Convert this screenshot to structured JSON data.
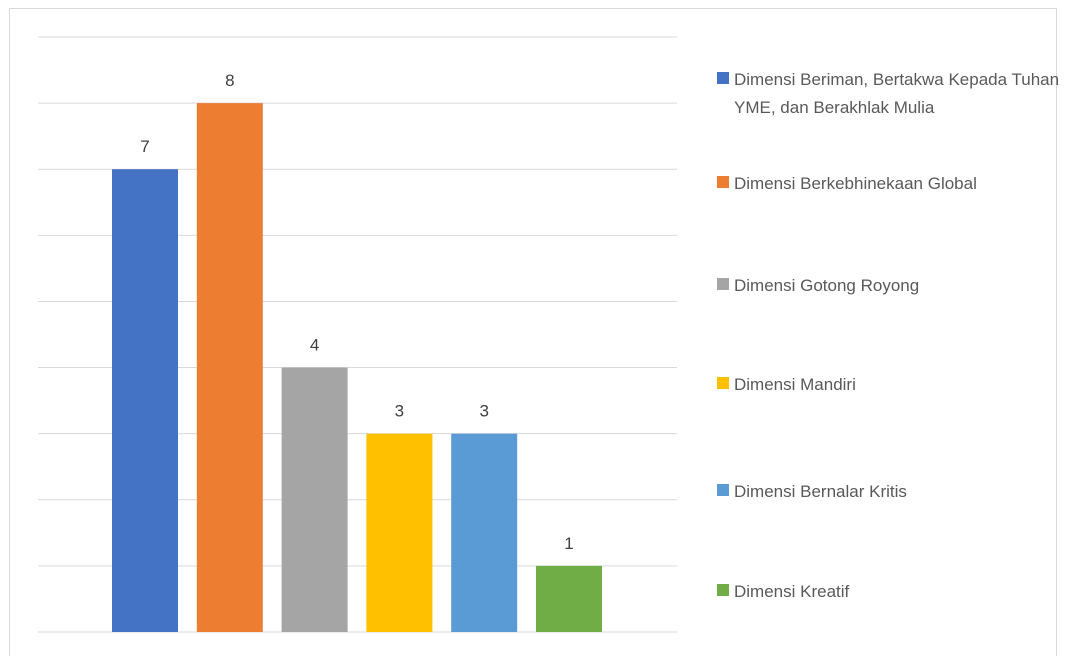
{
  "chart_data": {
    "type": "bar",
    "categories": [
      "Dimensi Beriman, Bertakwa Kepada Tuhan YME, dan Berakhlak Mulia",
      "Dimensi Berkebhinekaan Global",
      "Dimensi Gotong Royong",
      "Dimensi Mandiri",
      "Dimensi Bernalar Kritis",
      "Dimensi Kreatif"
    ],
    "values": [
      7,
      8,
      4,
      3,
      3,
      1
    ],
    "colors": [
      "#4472C4",
      "#ED7D31",
      "#A5A5A5",
      "#FFC000",
      "#5B9BD5",
      "#70AD47"
    ],
    "ylim": [
      0,
      9
    ],
    "grid": true,
    "legend_position": "right",
    "title": "",
    "xlabel": "",
    "ylabel": ""
  }
}
